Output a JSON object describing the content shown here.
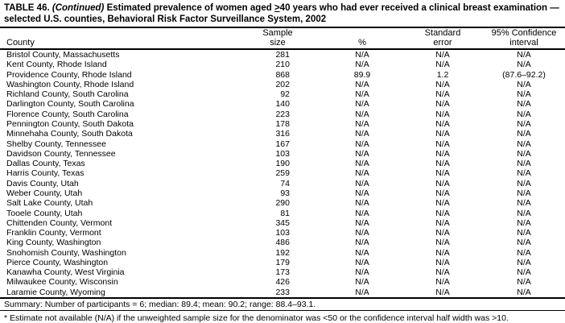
{
  "title": {
    "line1": {
      "table_label": "TABLE 46.",
      "continued": "(Continued)",
      "text_before_ge": "Estimated prevalence of women aged",
      "ge_symbol": ">",
      "text_after_ge": "40 years who had ever received a clinical breast examination —"
    },
    "line2": "selected U.S. counties, Behavioral Risk Factor Surveillance System, 2002"
  },
  "table": {
    "columns": [
      {
        "line1": "",
        "line2": "County"
      },
      {
        "line1": "Sample",
        "line2": "size"
      },
      {
        "line1": "",
        "line2": "%"
      },
      {
        "line1": "Standard",
        "line2": "error"
      },
      {
        "line1": "95% Confidence",
        "line2": "interval"
      }
    ],
    "rows": [
      [
        "Bristol County, Massachusetts",
        "281",
        "N/A",
        "N/A",
        "N/A"
      ],
      [
        "Kent County, Rhode Island",
        "210",
        "N/A",
        "N/A",
        "N/A"
      ],
      [
        "Providence County, Rhode Island",
        "868",
        "89.9",
        "1.2",
        "(87.6–92.2)"
      ],
      [
        "Washington County, Rhode Island",
        "202",
        "N/A",
        "N/A",
        "N/A"
      ],
      [
        "Richland County, South Carolina",
        "92",
        "N/A",
        "N/A",
        "N/A"
      ],
      [
        "Darlington County, South Carolina",
        "140",
        "N/A",
        "N/A",
        "N/A"
      ],
      [
        "Florence County, South Carolina",
        "223",
        "N/A",
        "N/A",
        "N/A"
      ],
      [
        "Pennington County, South Dakota",
        "178",
        "N/A",
        "N/A",
        "N/A"
      ],
      [
        "Minnehaha County, South Dakota",
        "316",
        "N/A",
        "N/A",
        "N/A"
      ],
      [
        "Shelby County, Tennessee",
        "167",
        "N/A",
        "N/A",
        "N/A"
      ],
      [
        "Davidson County, Tennessee",
        "103",
        "N/A",
        "N/A",
        "N/A"
      ],
      [
        "Dallas County, Texas",
        "190",
        "N/A",
        "N/A",
        "N/A"
      ],
      [
        "Harris County, Texas",
        "259",
        "N/A",
        "N/A",
        "N/A"
      ],
      [
        "Davis County, Utah",
        "74",
        "N/A",
        "N/A",
        "N/A"
      ],
      [
        "Weber County, Utah",
        "93",
        "N/A",
        "N/A",
        "N/A"
      ],
      [
        "Salt Lake County, Utah",
        "290",
        "N/A",
        "N/A",
        "N/A"
      ],
      [
        "Tooele County, Utah",
        "81",
        "N/A",
        "N/A",
        "N/A"
      ],
      [
        "Chittenden County, Vermont",
        "345",
        "N/A",
        "N/A",
        "N/A"
      ],
      [
        "Franklin County, Vermont",
        "103",
        "N/A",
        "N/A",
        "N/A"
      ],
      [
        "King County, Washington",
        "486",
        "N/A",
        "N/A",
        "N/A"
      ],
      [
        "Snohomish County, Washington",
        "192",
        "N/A",
        "N/A",
        "N/A"
      ],
      [
        "Pierce County, Washington",
        "179",
        "N/A",
        "N/A",
        "N/A"
      ],
      [
        "Kanawha County, West Virginia",
        "173",
        "N/A",
        "N/A",
        "N/A"
      ],
      [
        "Milwaukee County, Wisconsin",
        "426",
        "N/A",
        "N/A",
        "N/A"
      ],
      [
        "Laramie County, Wyoming",
        "233",
        "N/A",
        "N/A",
        "N/A"
      ]
    ]
  },
  "summary": "Summary: Number of participants = 6; median: 89.4; mean: 90.2; range: 88.4–93.1.",
  "footnote": "* Estimate not available (N/A) if the unweighted sample size for the denominator was <50 or the confidence interval half width was >10."
}
